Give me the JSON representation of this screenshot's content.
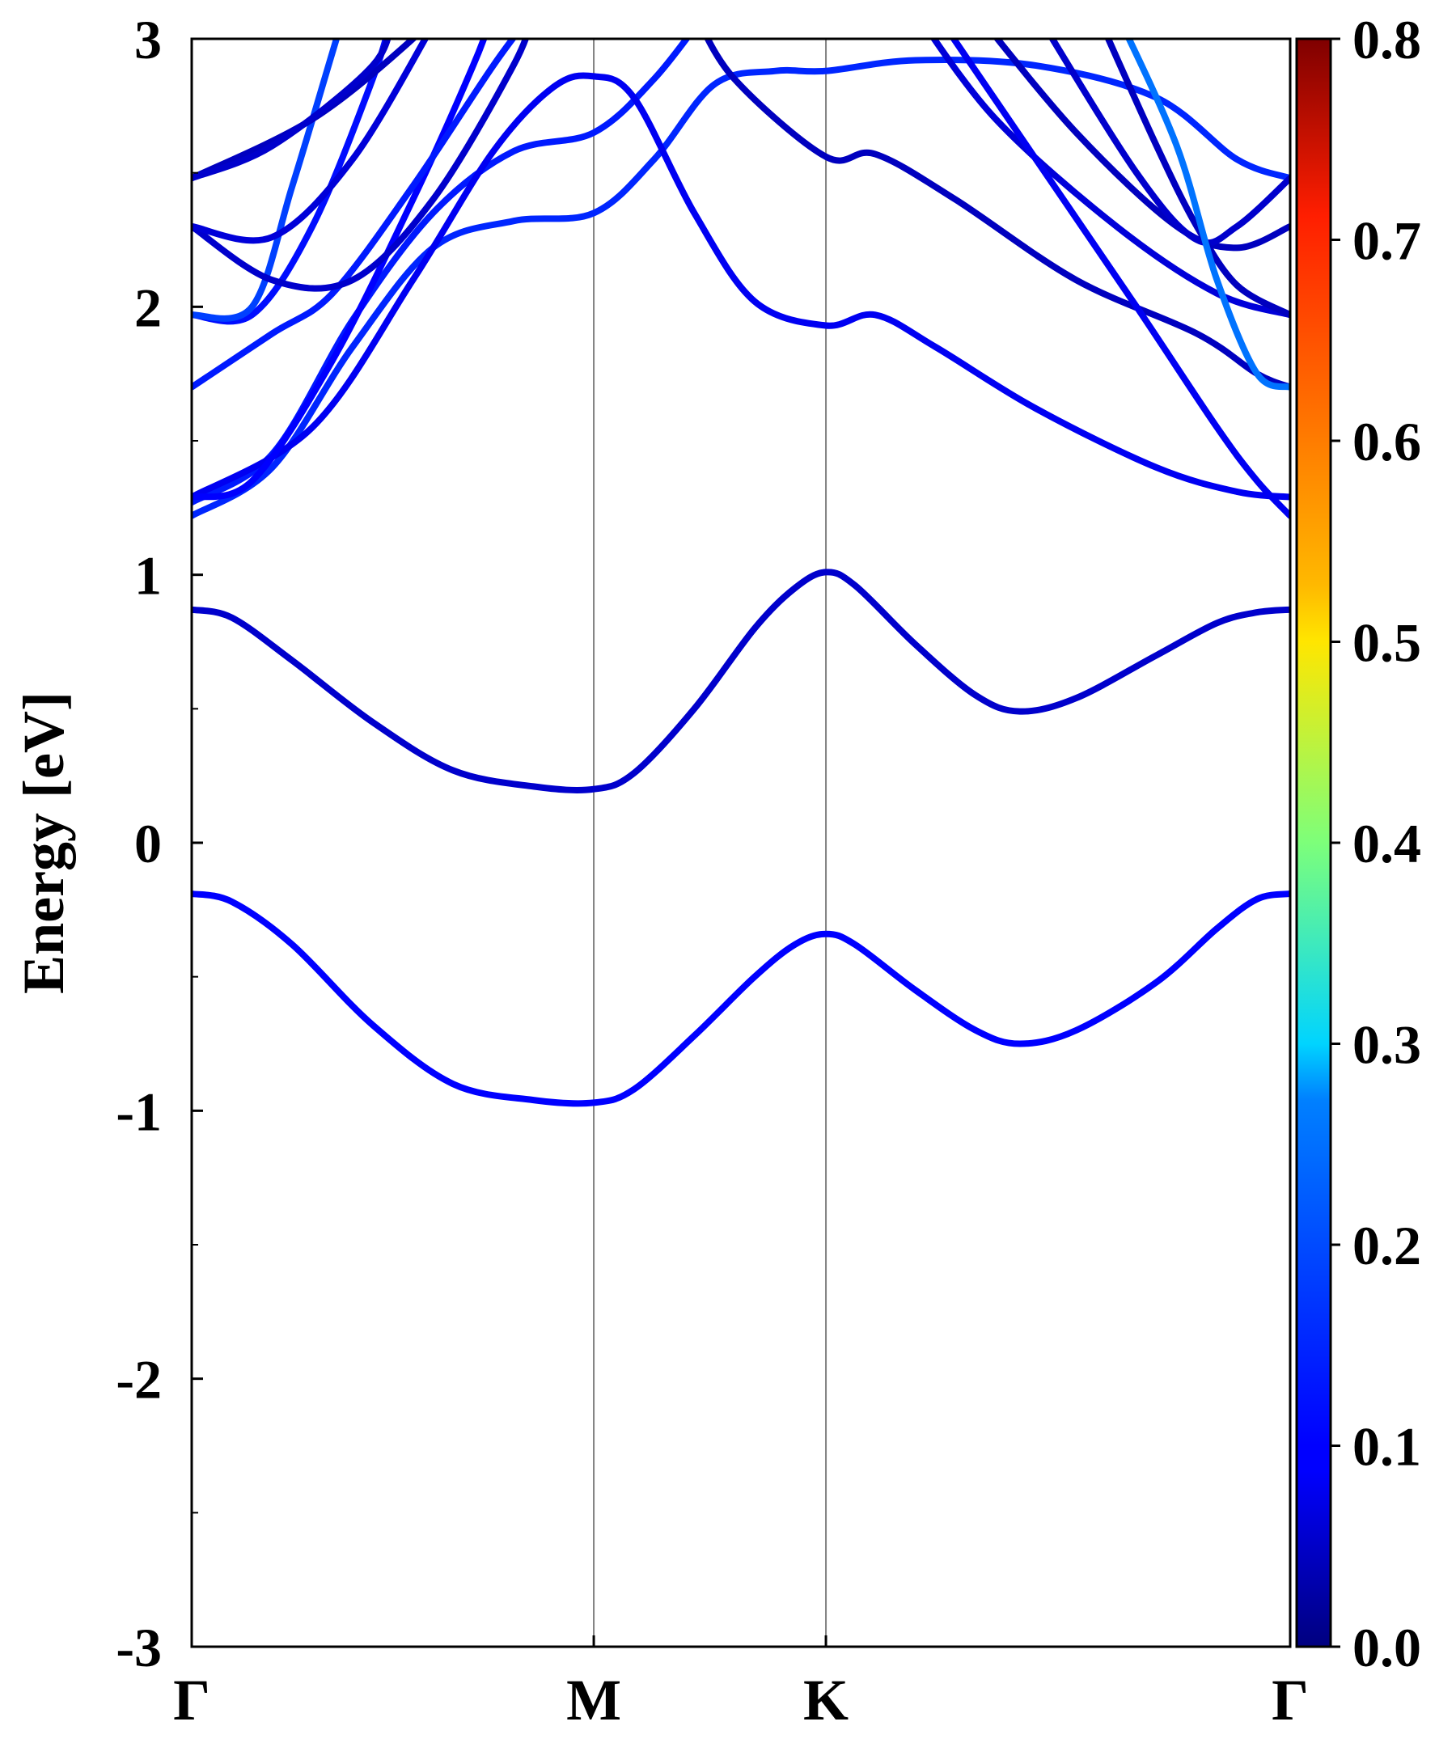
{
  "chart_data": {
    "type": "line",
    "title": "",
    "xlabel": "",
    "ylabel": "Energy [eV]",
    "ylim": [
      -3,
      3
    ],
    "grid": false,
    "k_points": [
      {
        "label": "Γ",
        "pos": 0.0
      },
      {
        "label": "M",
        "pos": 1.0
      },
      {
        "label": "K",
        "pos": 1.5774
      },
      {
        "label": "Γ",
        "pos": 2.7321
      }
    ],
    "y_ticks": [
      {
        "value": -3,
        "label": "-3"
      },
      {
        "value": -2,
        "label": "-2"
      },
      {
        "value": -1,
        "label": "-1"
      },
      {
        "value": 0,
        "label": "0"
      },
      {
        "value": 1,
        "label": "1"
      },
      {
        "value": 2,
        "label": "2"
      },
      {
        "value": 3,
        "label": "3"
      }
    ],
    "y_minor_ticks": [
      -2.5,
      -1.5,
      -0.5,
      0.5,
      1.5,
      2.5
    ],
    "colorbar": {
      "colormap": "jet",
      "range": [
        0.0,
        0.8
      ],
      "ticks": [
        {
          "value": 0.0,
          "label": "0.0"
        },
        {
          "value": 0.1,
          "label": "0.1"
        },
        {
          "value": 0.2,
          "label": "0.2"
        },
        {
          "value": 0.3,
          "label": "0.3"
        },
        {
          "value": 0.4,
          "label": "0.4"
        },
        {
          "value": 0.5,
          "label": "0.5"
        },
        {
          "value": 0.6,
          "label": "0.6"
        },
        {
          "value": 0.7,
          "label": "0.7"
        },
        {
          "value": 0.8,
          "label": "0.8"
        }
      ]
    },
    "series": [
      {
        "weight": 0.1,
        "points": [
          [
            0.0,
            -0.19
          ],
          [
            0.1,
            -0.22
          ],
          [
            0.25,
            -0.38
          ],
          [
            0.45,
            -0.68
          ],
          [
            0.65,
            -0.9
          ],
          [
            0.85,
            -0.96
          ],
          [
            1.0,
            -0.97
          ],
          [
            1.1,
            -0.92
          ],
          [
            1.25,
            -0.72
          ],
          [
            1.4,
            -0.5
          ],
          [
            1.5,
            -0.38
          ],
          [
            1.5774,
            -0.34
          ],
          [
            1.65,
            -0.38
          ],
          [
            1.8,
            -0.55
          ],
          [
            1.95,
            -0.7
          ],
          [
            2.06,
            -0.75
          ],
          [
            2.2,
            -0.7
          ],
          [
            2.4,
            -0.52
          ],
          [
            2.55,
            -0.32
          ],
          [
            2.65,
            -0.21
          ],
          [
            2.7321,
            -0.19
          ]
        ]
      },
      {
        "weight": 0.06,
        "points": [
          [
            0.0,
            0.87
          ],
          [
            0.1,
            0.84
          ],
          [
            0.25,
            0.68
          ],
          [
            0.45,
            0.45
          ],
          [
            0.65,
            0.27
          ],
          [
            0.85,
            0.21
          ],
          [
            1.0,
            0.2
          ],
          [
            1.1,
            0.26
          ],
          [
            1.25,
            0.5
          ],
          [
            1.4,
            0.8
          ],
          [
            1.5,
            0.95
          ],
          [
            1.5774,
            1.01
          ],
          [
            1.65,
            0.96
          ],
          [
            1.8,
            0.74
          ],
          [
            1.95,
            0.55
          ],
          [
            2.06,
            0.49
          ],
          [
            2.2,
            0.54
          ],
          [
            2.4,
            0.7
          ],
          [
            2.55,
            0.82
          ],
          [
            2.65,
            0.86
          ],
          [
            2.7321,
            0.87
          ]
        ]
      },
      {
        "weight": 0.13,
        "points": [
          [
            0.0,
            1.22
          ],
          [
            0.2,
            1.4
          ],
          [
            0.4,
            1.85
          ],
          [
            0.6,
            2.22
          ],
          [
            0.8,
            2.32
          ],
          [
            1.0,
            2.35
          ],
          [
            1.15,
            2.55
          ],
          [
            1.3,
            2.83
          ],
          [
            1.45,
            2.88
          ],
          [
            1.5774,
            2.88
          ],
          [
            1.8,
            2.92
          ],
          [
            2.1,
            2.9
          ],
          [
            2.4,
            2.78
          ],
          [
            2.6,
            2.55
          ],
          [
            2.7321,
            2.48
          ]
        ]
      },
      {
        "weight": 0.12,
        "points": [
          [
            0.0,
            1.27
          ],
          [
            0.2,
            1.45
          ],
          [
            0.4,
            1.95
          ],
          [
            0.6,
            2.35
          ],
          [
            0.8,
            2.58
          ],
          [
            1.0,
            2.65
          ],
          [
            1.15,
            2.85
          ],
          [
            1.28,
            3.1
          ]
        ]
      },
      {
        "weight": 0.09,
        "points": [
          [
            0.0,
            1.29
          ],
          [
            0.3,
            1.55
          ],
          [
            0.55,
            2.1
          ],
          [
            0.75,
            2.58
          ],
          [
            0.9,
            2.82
          ],
          [
            1.0,
            2.86
          ],
          [
            1.1,
            2.78
          ],
          [
            1.25,
            2.35
          ],
          [
            1.4,
            2.02
          ],
          [
            1.5774,
            1.93
          ],
          [
            1.7,
            1.97
          ],
          [
            1.85,
            1.85
          ],
          [
            2.1,
            1.62
          ],
          [
            2.4,
            1.4
          ],
          [
            2.6,
            1.31
          ],
          [
            2.7321,
            1.29
          ]
        ]
      },
      {
        "weight": 0.1,
        "points": [
          [
            0.0,
            1.29
          ],
          [
            0.15,
            1.35
          ],
          [
            0.35,
            1.8
          ],
          [
            0.55,
            2.4
          ],
          [
            0.7,
            2.9
          ],
          [
            0.75,
            3.1
          ]
        ]
      },
      {
        "weight": 0.12,
        "points": [
          [
            0.0,
            1.7
          ],
          [
            0.2,
            1.9
          ],
          [
            0.35,
            2.05
          ],
          [
            0.55,
            2.45
          ],
          [
            0.75,
            2.9
          ],
          [
            0.85,
            3.1
          ]
        ]
      },
      {
        "weight": 0.11,
        "points": [
          [
            0.0,
            1.97
          ],
          [
            0.15,
            1.97
          ],
          [
            0.3,
            2.3
          ],
          [
            0.45,
            2.85
          ],
          [
            0.5,
            3.1
          ]
        ]
      },
      {
        "weight": 0.15,
        "points": [
          [
            0.0,
            1.97
          ],
          [
            0.15,
            2.0
          ],
          [
            0.25,
            2.45
          ],
          [
            0.35,
            2.95
          ],
          [
            0.38,
            3.1
          ]
        ]
      },
      {
        "weight": 0.06,
        "points": [
          [
            0.0,
            2.3
          ],
          [
            0.2,
            2.1
          ],
          [
            0.4,
            2.1
          ],
          [
            0.6,
            2.4
          ],
          [
            0.8,
            2.9
          ],
          [
            0.85,
            3.1
          ]
        ]
      },
      {
        "weight": 0.07,
        "points": [
          [
            0.0,
            2.3
          ],
          [
            0.2,
            2.26
          ],
          [
            0.4,
            2.55
          ],
          [
            0.6,
            3.05
          ],
          [
            0.62,
            3.1
          ]
        ]
      },
      {
        "weight": 0.05,
        "points": [
          [
            0.0,
            2.48
          ],
          [
            0.3,
            2.7
          ],
          [
            0.55,
            3.0
          ],
          [
            0.6,
            3.1
          ]
        ]
      },
      {
        "weight": 0.06,
        "points": [
          [
            0.0,
            2.48
          ],
          [
            0.2,
            2.6
          ],
          [
            0.45,
            2.9
          ],
          [
            0.5,
            3.1
          ]
        ]
      },
      {
        "weight": 0.05,
        "points": [
          [
            1.25,
            3.1
          ],
          [
            1.35,
            2.85
          ],
          [
            1.5774,
            2.56
          ],
          [
            1.7,
            2.57
          ],
          [
            1.9,
            2.4
          ],
          [
            2.2,
            2.1
          ],
          [
            2.5,
            1.9
          ],
          [
            2.65,
            1.75
          ],
          [
            2.7321,
            1.7
          ]
        ]
      },
      {
        "weight": 0.07,
        "points": [
          [
            1.8,
            3.1
          ],
          [
            2.0,
            2.7
          ],
          [
            2.3,
            2.3
          ],
          [
            2.55,
            2.05
          ],
          [
            2.7321,
            1.97
          ]
        ]
      },
      {
        "weight": 0.09,
        "points": [
          [
            1.85,
            3.1
          ],
          [
            2.1,
            2.55
          ],
          [
            2.35,
            2.0
          ],
          [
            2.55,
            1.55
          ],
          [
            2.65,
            1.35
          ],
          [
            2.7321,
            1.22
          ]
        ]
      },
      {
        "weight": 0.05,
        "points": [
          [
            1.95,
            3.1
          ],
          [
            2.2,
            2.65
          ],
          [
            2.45,
            2.3
          ],
          [
            2.6,
            2.22
          ],
          [
            2.7321,
            2.3
          ]
        ]
      },
      {
        "weight": 0.06,
        "points": [
          [
            2.1,
            3.1
          ],
          [
            2.35,
            2.5
          ],
          [
            2.5,
            2.25
          ],
          [
            2.6,
            2.3
          ],
          [
            2.7321,
            2.48
          ]
        ]
      },
      {
        "weight": 0.05,
        "points": [
          [
            2.25,
            3.1
          ],
          [
            2.4,
            2.6
          ],
          [
            2.5,
            2.3
          ],
          [
            2.6,
            2.08
          ],
          [
            2.7321,
            1.97
          ]
        ]
      },
      {
        "weight": 0.19,
        "points": [
          [
            2.3,
            3.1
          ],
          [
            2.45,
            2.6
          ],
          [
            2.55,
            2.1
          ],
          [
            2.65,
            1.75
          ],
          [
            2.7321,
            1.7
          ]
        ]
      }
    ]
  }
}
